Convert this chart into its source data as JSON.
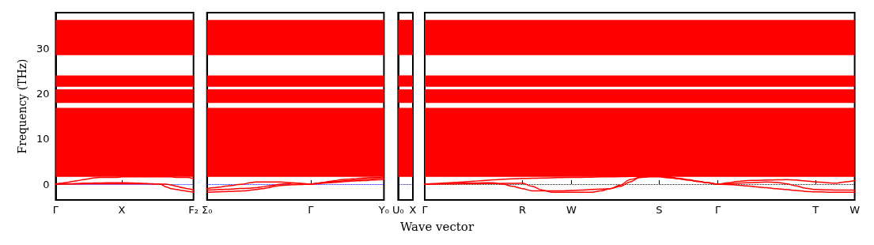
{
  "chart_data": [
    {
      "type": "line",
      "ylabel": "Frequency (THz)",
      "categories": [
        "Γ",
        null,
        null,
        null,
        null,
        null,
        null,
        null,
        null,
        null,
        null,
        null,
        "X",
        null,
        null,
        null,
        null,
        null,
        null,
        null,
        null,
        null,
        null,
        null,
        null,
        "F₂"
      ],
      "ylim": [
        -3.5,
        38
      ],
      "yticks": [
        0,
        10,
        20,
        30
      ],
      "grid": false,
      "line_style": "solid",
      "bands": [
        {
          "axis": "y",
          "from": 1.6,
          "to": 16.9,
          "color": "#ff0000"
        },
        {
          "axis": "y",
          "from": 18.0,
          "to": 21.0,
          "color": "#ff0000"
        },
        {
          "axis": "y",
          "from": 21.6,
          "to": 24.1,
          "color": "#ff0000"
        },
        {
          "axis": "y",
          "from": 28.6,
          "to": 36.4,
          "color": "#ff0000"
        }
      ],
      "ref_lines": [
        {
          "axis": "y",
          "value": 0,
          "color": "#0000ff",
          "line_style": "dotted"
        }
      ],
      "series": [
        {
          "color": "#ff0000",
          "values": [
            0,
            0.2,
            0.4,
            0.6,
            0.8,
            1.0,
            1.2,
            1.4,
            1.5,
            1.5,
            1.5,
            1.5,
            1.6,
            1.6,
            1.6,
            1.6,
            1.6,
            1.6,
            1.6,
            1.6,
            1.6,
            1.6,
            1.5,
            1.5,
            1.5,
            1.2
          ]
        },
        {
          "color": "#ff0000",
          "values": [
            0,
            0.05,
            0.1,
            0.1,
            0.15,
            0.2,
            0.2,
            0.25,
            0.25,
            0.3,
            0.3,
            0.3,
            0.3,
            0.3,
            0.25,
            0.2,
            0.15,
            0.1,
            0.05,
            0,
            -0.6,
            -1.0,
            -1.2,
            -1.4,
            -1.6,
            -1.8
          ]
        },
        {
          "color": "#ff0000",
          "values": [
            0,
            0,
            0,
            0.05,
            0.05,
            0.05,
            0.1,
            0.1,
            0.1,
            0.1,
            0.1,
            0.1,
            0.1,
            0.1,
            0.1,
            0.1,
            0.1,
            0.05,
            0.05,
            0,
            0,
            -0.2,
            -0.5,
            -0.8,
            -1.0,
            -1.3
          ]
        }
      ]
    },
    {
      "type": "line",
      "categories": [
        "Σ₀",
        null,
        null,
        null,
        null,
        null,
        null,
        null,
        null,
        null,
        null,
        null,
        null,
        null,
        null,
        null,
        null,
        "Γ",
        null,
        null,
        null,
        null,
        null,
        null,
        null,
        null,
        null,
        null,
        null,
        "Y₀"
      ],
      "ylim": [
        -3.5,
        38
      ],
      "yticks": [
        0,
        10,
        20,
        30
      ],
      "tick_labels": "x",
      "grid": false,
      "line_style": "solid",
      "bands": [
        {
          "axis": "y",
          "from": 1.6,
          "to": 16.9,
          "color": "#ff0000"
        },
        {
          "axis": "y",
          "from": 18.0,
          "to": 21.0,
          "color": "#ff0000"
        },
        {
          "axis": "y",
          "from": 21.6,
          "to": 24.1,
          "color": "#ff0000"
        },
        {
          "axis": "y",
          "from": 28.6,
          "to": 36.4,
          "color": "#ff0000"
        }
      ],
      "ref_lines": [
        {
          "axis": "y",
          "value": 0,
          "color": "#0000ff",
          "line_style": "dotted"
        }
      ],
      "series": [
        {
          "color": "#ff0000",
          "values": [
            -1.8,
            -1.75,
            -1.7,
            -1.65,
            -1.6,
            -1.55,
            -1.5,
            -1.35,
            -1.2,
            -1.0,
            -0.8,
            -0.5,
            -0.3,
            -0.2,
            -0.15,
            -0.1,
            -0.05,
            0,
            0.15,
            0.3,
            0.45,
            0.55,
            0.7,
            0.8,
            0.9,
            1.0,
            1.1,
            1.2,
            1.25,
            1.3
          ]
        },
        {
          "color": "#ff0000",
          "values": [
            -1.0,
            -0.8,
            -0.65,
            -0.45,
            -0.3,
            -0.1,
            0,
            0.3,
            0.5,
            0.5,
            0.5,
            0.5,
            0.5,
            0.4,
            0.3,
            0.2,
            0.1,
            0,
            0.1,
            0.2,
            0.3,
            0.4,
            0.5,
            0.6,
            0.7,
            0.75,
            0.8,
            0.9,
            0.95,
            1.0
          ]
        },
        {
          "color": "#ff0000",
          "values": [
            -1.3,
            -1.25,
            -1.2,
            -1.15,
            -1.1,
            -1.0,
            -0.95,
            -0.9,
            -0.8,
            -0.6,
            -0.4,
            -0.2,
            0,
            0.1,
            0.2,
            0.2,
            0.1,
            0,
            0.2,
            0.4,
            0.6,
            0.8,
            1.0,
            1.1,
            1.2,
            1.3,
            1.4,
            1.5,
            1.5,
            1.6
          ]
        }
      ]
    },
    {
      "type": "line",
      "categories": [
        "U₀",
        "X"
      ],
      "ylim": [
        -3.5,
        38
      ],
      "yticks": [
        0,
        10,
        20,
        30
      ],
      "tick_labels": "x",
      "bands": [
        {
          "axis": "y",
          "from": 1.6,
          "to": 16.9,
          "color": "#ff0000"
        },
        {
          "axis": "y",
          "from": 18.0,
          "to": 21.0,
          "color": "#ff0000"
        },
        {
          "axis": "y",
          "from": 21.6,
          "to": 24.1,
          "color": "#ff0000"
        },
        {
          "axis": "y",
          "from": 28.6,
          "to": 36.4,
          "color": "#ff0000"
        }
      ],
      "ref_lines": [
        {
          "axis": "y",
          "value": 0,
          "color": "#0000ff",
          "line_style": "dotted"
        }
      ]
    },
    {
      "type": "line",
      "xlabel": "Wave vector",
      "categories": [
        "Γ",
        null,
        null,
        null,
        null,
        null,
        null,
        null,
        null,
        null,
        "R",
        null,
        null,
        null,
        null,
        "W",
        null,
        null,
        null,
        null,
        null,
        null,
        null,
        null,
        "S",
        null,
        null,
        null,
        null,
        null,
        "Γ",
        null,
        null,
        null,
        null,
        null,
        null,
        null,
        null,
        null,
        "T",
        null,
        null,
        null,
        "W"
      ],
      "ylim": [
        -3.5,
        38
      ],
      "yticks": [
        0,
        10,
        20,
        30
      ],
      "tick_labels": "x",
      "grid": false,
      "line_style": "solid",
      "bands": [
        {
          "axis": "y",
          "from": 1.6,
          "to": 16.9,
          "color": "#ff0000"
        },
        {
          "axis": "y",
          "from": 18.0,
          "to": 21.0,
          "color": "#ff0000"
        },
        {
          "axis": "y",
          "from": 21.6,
          "to": 24.1,
          "color": "#ff0000"
        },
        {
          "axis": "y",
          "from": 28.6,
          "to": 36.4,
          "color": "#ff0000"
        }
      ],
      "ref_lines": [
        {
          "axis": "y",
          "value": 0,
          "color": "#0000ff",
          "line_style": "dotted"
        }
      ],
      "series": [
        {
          "color": "#ff0000",
          "values": [
            0,
            0.05,
            0.1,
            0.15,
            0.2,
            0.25,
            0.3,
            0.3,
            0.0,
            -0.5,
            -1.0,
            -1.5,
            -1.5,
            -1.5,
            -1.5,
            -1.4,
            -1.3,
            -1.2,
            -1.1,
            -1.0,
            -0.2,
            1.0,
            1.5,
            1.7,
            1.8,
            1.6,
            1.3,
            1.0,
            0.6,
            0.3,
            0,
            0.1,
            0.2,
            0.3,
            0.4,
            0.5,
            0.4,
            0.1,
            -0.4,
            -0.9,
            -1.2,
            -1.25,
            -1.3,
            -1.3,
            -1.3
          ]
        },
        {
          "color": "#ff0000",
          "values": [
            0,
            0.02,
            0.04,
            0.06,
            0.08,
            0.1,
            0.12,
            0.14,
            0.16,
            0.18,
            0.2,
            -0.5,
            -1.3,
            -1.8,
            -1.8,
            -1.8,
            -1.8,
            -1.8,
            -1.5,
            -1.0,
            -0.5,
            0.5,
            1.5,
            1.6,
            1.6,
            1.4,
            1.2,
            0.9,
            0.6,
            0.3,
            0,
            -0.1,
            -0.2,
            -0.4,
            -0.6,
            -0.8,
            -1.0,
            -1.2,
            -1.4,
            -1.6,
            -1.7,
            -1.75,
            -1.8,
            -1.8,
            -1.8
          ]
        },
        {
          "color": "#ff0000",
          "values": [
            0,
            0.12,
            0.25,
            0.38,
            0.5,
            0.65,
            0.8,
            0.95,
            1.1,
            1.2,
            1.25,
            1.3,
            1.35,
            1.4,
            1.45,
            1.5,
            1.5,
            1.55,
            1.6,
            1.6,
            1.65,
            1.7,
            1.7,
            1.75,
            1.8,
            1.5,
            1.2,
            0.9,
            0.6,
            0.3,
            0,
            0.3,
            0.6,
            0.8,
            0.85,
            0.9,
            0.95,
            1.0,
            0.9,
            0.7,
            0.5,
            0.35,
            0.2,
            0.5,
            0.8
          ]
        }
      ]
    }
  ]
}
